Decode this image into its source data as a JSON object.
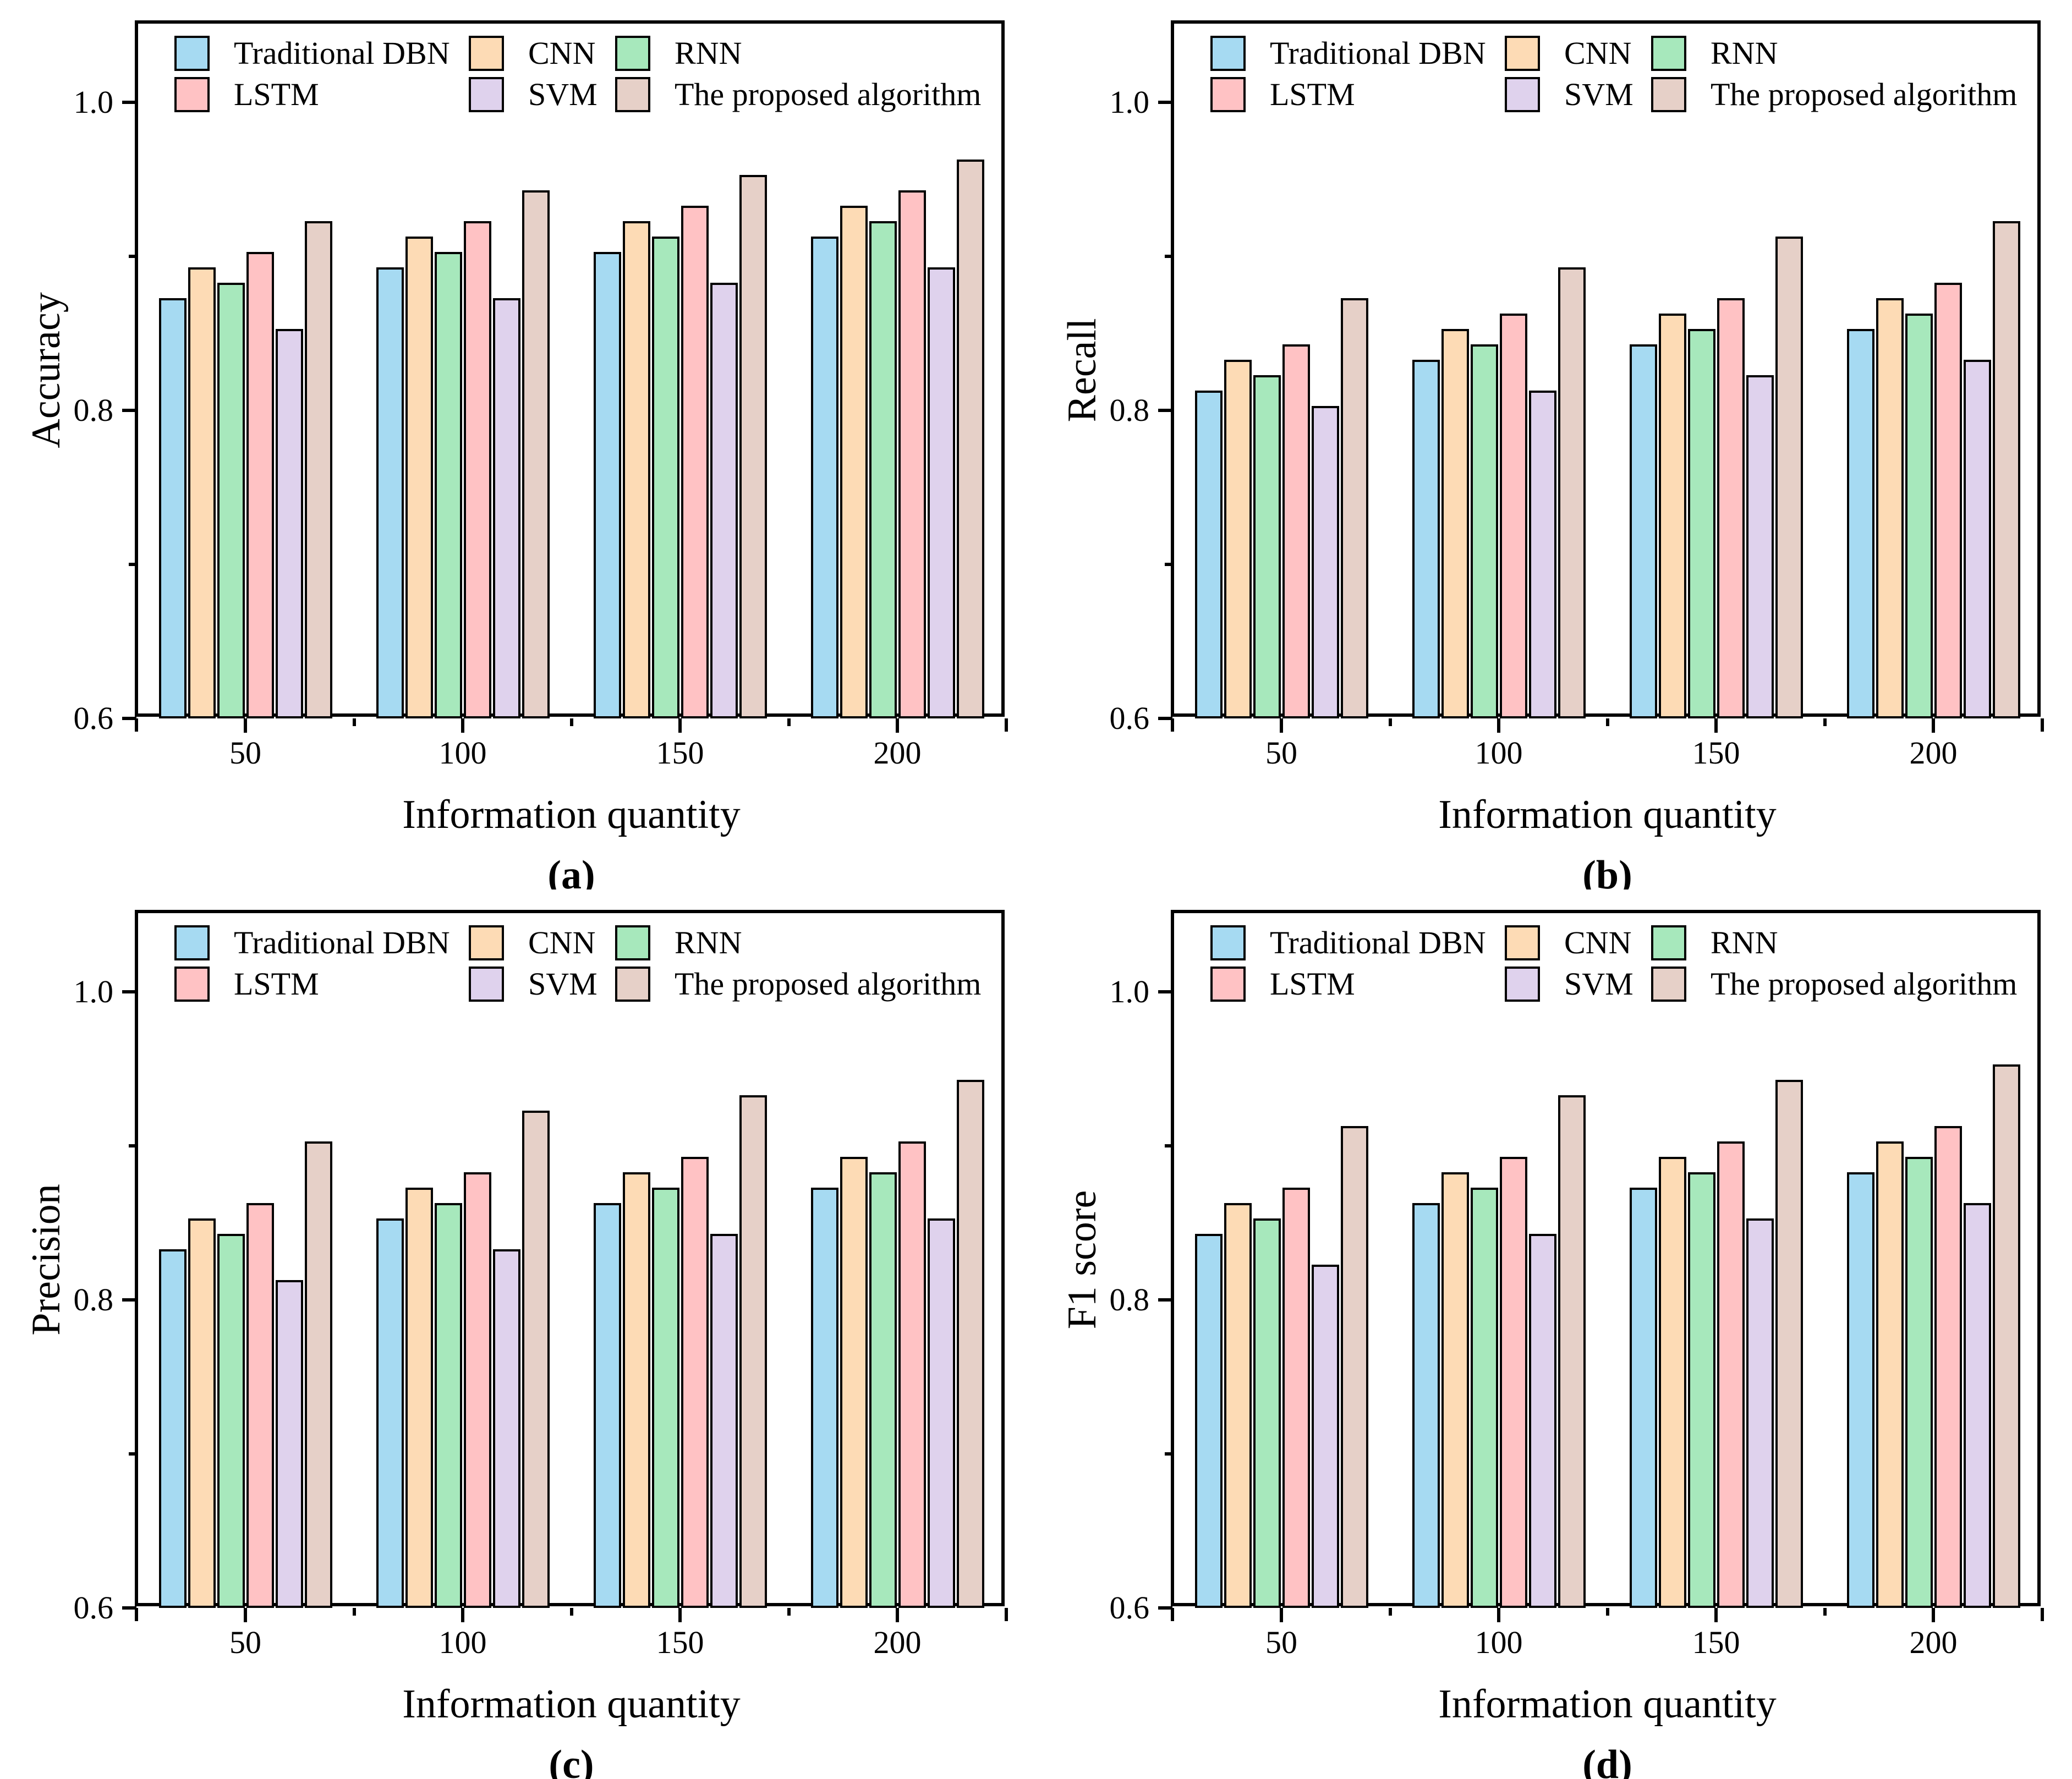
{
  "figure": {
    "x_axis_title": "Information quantity",
    "y_tick_labels": [
      "1.0",
      "0.8",
      "0.6"
    ],
    "categories": [
      "50",
      "100",
      "150",
      "200"
    ],
    "legend": [
      {
        "name": "Traditional DBN",
        "slug": "traditional-dbn",
        "color": "#A6DAF2"
      },
      {
        "name": "CNN",
        "slug": "cnn",
        "color": "#FDDBB5"
      },
      {
        "name": "RNN",
        "slug": "rnn",
        "color": "#A7E8BC"
      },
      {
        "name": "LSTM",
        "slug": "lstm",
        "color": "#FFC2C4"
      },
      {
        "name": "SVM",
        "slug": "svm",
        "color": "#DFD2ED"
      },
      {
        "name": "The proposed algorithm",
        "slug": "proposed",
        "color": "#E6D0C8"
      }
    ]
  },
  "chart_data": [
    {
      "type": "bar",
      "panel_label": "(a)",
      "ylabel": "Accuracy",
      "xlabel": "Information quantity",
      "categories": [
        50,
        100,
        150,
        200
      ],
      "ylim": [
        0.6,
        1.05
      ],
      "yticks": [
        0.6,
        0.8,
        1.0
      ],
      "grid": false,
      "legend_position": "inside top-left",
      "series": [
        {
          "name": "Traditional DBN",
          "values": [
            0.87,
            0.89,
            0.9,
            0.91
          ]
        },
        {
          "name": "CNN",
          "values": [
            0.89,
            0.91,
            0.92,
            0.93
          ]
        },
        {
          "name": "RNN",
          "values": [
            0.88,
            0.9,
            0.91,
            0.92
          ]
        },
        {
          "name": "LSTM",
          "values": [
            0.9,
            0.92,
            0.93,
            0.94
          ]
        },
        {
          "name": "SVM",
          "values": [
            0.85,
            0.87,
            0.88,
            0.89
          ]
        },
        {
          "name": "The proposed algorithm",
          "values": [
            0.92,
            0.94,
            0.95,
            0.96
          ]
        }
      ]
    },
    {
      "type": "bar",
      "panel_label": "(b)",
      "ylabel": "Recall",
      "xlabel": "Information quantity",
      "categories": [
        50,
        100,
        150,
        200
      ],
      "ylim": [
        0.6,
        1.05
      ],
      "yticks": [
        0.6,
        0.8,
        1.0
      ],
      "grid": false,
      "legend_position": "inside top-left",
      "series": [
        {
          "name": "Traditional DBN",
          "values": [
            0.81,
            0.83,
            0.84,
            0.85
          ]
        },
        {
          "name": "CNN",
          "values": [
            0.83,
            0.85,
            0.86,
            0.87
          ]
        },
        {
          "name": "RNN",
          "values": [
            0.82,
            0.84,
            0.85,
            0.86
          ]
        },
        {
          "name": "LSTM",
          "values": [
            0.84,
            0.86,
            0.87,
            0.88
          ]
        },
        {
          "name": "SVM",
          "values": [
            0.8,
            0.81,
            0.82,
            0.83
          ]
        },
        {
          "name": "The proposed algorithm",
          "values": [
            0.87,
            0.89,
            0.91,
            0.92
          ]
        }
      ]
    },
    {
      "type": "bar",
      "panel_label": "(c)",
      "ylabel": "Precision",
      "xlabel": "Information quantity",
      "categories": [
        50,
        100,
        150,
        200
      ],
      "ylim": [
        0.6,
        1.05
      ],
      "yticks": [
        0.6,
        0.8,
        1.0
      ],
      "grid": false,
      "legend_position": "inside top-left",
      "series": [
        {
          "name": "Traditional DBN",
          "values": [
            0.83,
            0.85,
            0.86,
            0.87
          ]
        },
        {
          "name": "CNN",
          "values": [
            0.85,
            0.87,
            0.88,
            0.89
          ]
        },
        {
          "name": "RNN",
          "values": [
            0.84,
            0.86,
            0.87,
            0.88
          ]
        },
        {
          "name": "LSTM",
          "values": [
            0.86,
            0.88,
            0.89,
            0.9
          ]
        },
        {
          "name": "SVM",
          "values": [
            0.81,
            0.83,
            0.84,
            0.85
          ]
        },
        {
          "name": "The proposed algorithm",
          "values": [
            0.9,
            0.92,
            0.93,
            0.94
          ]
        }
      ]
    },
    {
      "type": "bar",
      "panel_label": "(d)",
      "ylabel": "F1 score",
      "xlabel": "Information quantity",
      "categories": [
        50,
        100,
        150,
        200
      ],
      "ylim": [
        0.6,
        1.05
      ],
      "yticks": [
        0.6,
        0.8,
        1.0
      ],
      "grid": false,
      "legend_position": "inside top-left",
      "series": [
        {
          "name": "Traditional DBN",
          "values": [
            0.84,
            0.86,
            0.87,
            0.88
          ]
        },
        {
          "name": "CNN",
          "values": [
            0.86,
            0.88,
            0.89,
            0.9
          ]
        },
        {
          "name": "RNN",
          "values": [
            0.85,
            0.87,
            0.88,
            0.89
          ]
        },
        {
          "name": "LSTM",
          "values": [
            0.87,
            0.89,
            0.9,
            0.91
          ]
        },
        {
          "name": "SVM",
          "values": [
            0.82,
            0.84,
            0.85,
            0.86
          ]
        },
        {
          "name": "The proposed algorithm",
          "values": [
            0.91,
            0.93,
            0.94,
            0.95
          ]
        }
      ]
    }
  ]
}
